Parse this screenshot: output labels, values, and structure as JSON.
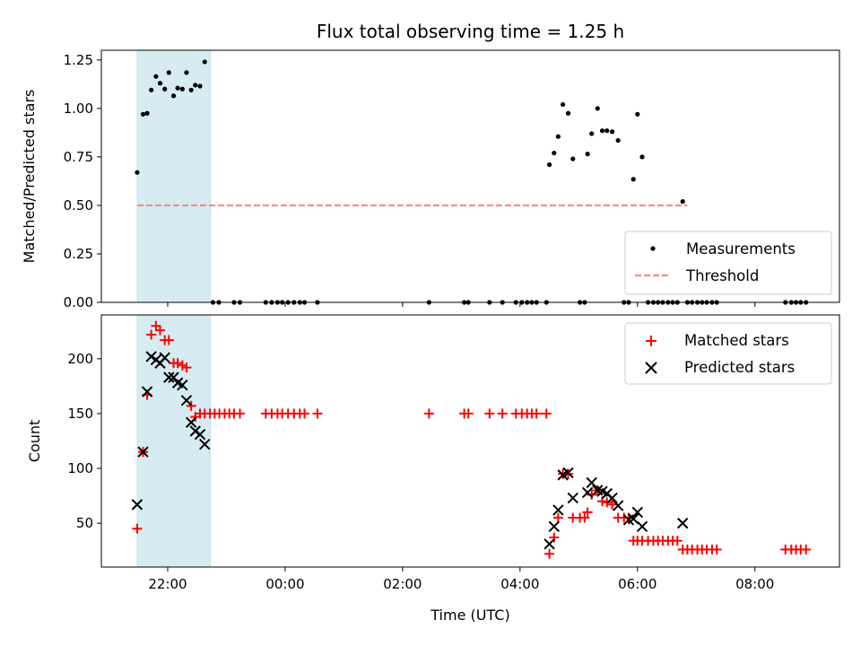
{
  "chart_data": [
    {
      "type": "scatter",
      "title": "Flux total observing time = 1.25 h",
      "ylabel": "Matched/Predicted stars",
      "xlabel": "",
      "ylim": [
        0,
        1.3
      ],
      "yticks": [
        0,
        0.25,
        0.5,
        0.75,
        1.0,
        1.25
      ],
      "ytick_labels": [
        "0.00",
        "0.25",
        "0.50",
        "0.75",
        "1.00",
        "1.25"
      ],
      "xticks_hours": [
        22,
        24,
        26,
        28,
        30,
        32
      ],
      "xtick_labels_shown": false,
      "legend_placement": "lower right",
      "legend": [
        "Measurements",
        "Threshold"
      ],
      "highlight_span_hours": [
        21.48,
        22.73
      ],
      "highlight_color": "#add8e6",
      "threshold": {
        "name": "Threshold",
        "value": 0.5,
        "x_range_hours": [
          21.48,
          30.85
        ],
        "color": "#ff8080"
      },
      "series": [
        {
          "name": "Measurements",
          "color": "#000000",
          "points": [
            [
              21.48,
              0.67
            ],
            [
              21.58,
              0.97
            ],
            [
              21.65,
              0.975
            ],
            [
              21.72,
              1.095
            ],
            [
              21.8,
              1.165
            ],
            [
              21.87,
              1.13
            ],
            [
              21.95,
              1.1
            ],
            [
              22.02,
              1.185
            ],
            [
              22.1,
              1.065
            ],
            [
              22.17,
              1.105
            ],
            [
              22.25,
              1.1
            ],
            [
              22.32,
              1.185
            ],
            [
              22.4,
              1.095
            ],
            [
              22.47,
              1.12
            ],
            [
              22.55,
              1.115
            ],
            [
              22.63,
              1.24
            ],
            [
              22.77,
              0
            ],
            [
              22.87,
              0
            ],
            [
              23.13,
              0
            ],
            [
              23.23,
              0
            ],
            [
              23.67,
              0
            ],
            [
              23.77,
              0
            ],
            [
              23.87,
              0
            ],
            [
              23.95,
              0
            ],
            [
              24.05,
              0
            ],
            [
              24.15,
              0
            ],
            [
              24.25,
              0
            ],
            [
              24.33,
              0
            ],
            [
              24.55,
              0
            ],
            [
              26.45,
              0
            ],
            [
              27.05,
              0
            ],
            [
              27.12,
              0
            ],
            [
              27.48,
              0
            ],
            [
              27.7,
              0
            ],
            [
              27.93,
              0
            ],
            [
              28.03,
              0
            ],
            [
              28.12,
              0
            ],
            [
              28.2,
              0
            ],
            [
              28.28,
              0
            ],
            [
              28.45,
              0
            ],
            [
              28.5,
              0.71
            ],
            [
              28.58,
              0.77
            ],
            [
              28.65,
              0.855
            ],
            [
              28.73,
              1.02
            ],
            [
              28.82,
              0.975
            ],
            [
              28.9,
              0.74
            ],
            [
              29.02,
              0
            ],
            [
              29.1,
              0
            ],
            [
              29.15,
              0.765
            ],
            [
              29.22,
              0.87
            ],
            [
              29.32,
              1.0
            ],
            [
              29.4,
              0.885
            ],
            [
              29.48,
              0.885
            ],
            [
              29.57,
              0.88
            ],
            [
              29.67,
              0.835
            ],
            [
              29.77,
              0
            ],
            [
              29.85,
              0
            ],
            [
              29.93,
              0.635
            ],
            [
              30.0,
              0.97
            ],
            [
              30.08,
              0.75
            ],
            [
              30.18,
              0
            ],
            [
              30.27,
              0
            ],
            [
              30.35,
              0
            ],
            [
              30.43,
              0
            ],
            [
              30.52,
              0
            ],
            [
              30.6,
              0
            ],
            [
              30.68,
              0
            ],
            [
              30.77,
              0.52
            ],
            [
              30.85,
              0
            ],
            [
              30.93,
              0
            ],
            [
              31.02,
              0
            ],
            [
              31.1,
              0
            ],
            [
              31.18,
              0
            ],
            [
              31.27,
              0
            ],
            [
              31.35,
              0
            ],
            [
              32.52,
              0
            ],
            [
              32.62,
              0
            ],
            [
              32.7,
              0
            ],
            [
              32.78,
              0
            ],
            [
              32.87,
              0
            ]
          ]
        }
      ]
    },
    {
      "type": "scatter",
      "title": "",
      "ylabel": "Count",
      "xlabel": "Time (UTC)",
      "ylim": [
        10,
        240
      ],
      "yticks": [
        50,
        100,
        150,
        200
      ],
      "ytick_labels": [
        "50",
        "100",
        "150",
        "200"
      ],
      "xticks_hours": [
        22,
        24,
        26,
        28,
        30,
        32
      ],
      "xtick_labels": [
        "22:00",
        "00:00",
        "02:00",
        "04:00",
        "06:00",
        "08:00"
      ],
      "legend_placement": "upper right",
      "legend": [
        "Matched stars",
        "Predicted stars"
      ],
      "highlight_span_hours": [
        21.48,
        22.73
      ],
      "highlight_color": "#add8e6",
      "series": [
        {
          "name": "Matched stars",
          "marker": "plus",
          "color": "#ff0000",
          "points": [
            [
              21.48,
              45
            ],
            [
              21.58,
              115
            ],
            [
              21.65,
              167
            ],
            [
              21.72,
              222
            ],
            [
              21.8,
              230
            ],
            [
              21.87,
              226
            ],
            [
              21.95,
              217
            ],
            [
              22.02,
              217
            ],
            [
              22.1,
              196
            ],
            [
              22.17,
              196
            ],
            [
              22.25,
              194
            ],
            [
              22.32,
              192
            ],
            [
              22.4,
              157
            ],
            [
              22.47,
              147
            ],
            [
              22.55,
              150
            ],
            [
              22.63,
              150
            ],
            [
              22.72,
              150
            ],
            [
              22.8,
              150
            ],
            [
              22.88,
              150
            ],
            [
              22.97,
              150
            ],
            [
              23.05,
              150
            ],
            [
              23.13,
              150
            ],
            [
              23.23,
              150
            ],
            [
              23.67,
              150
            ],
            [
              23.77,
              150
            ],
            [
              23.87,
              150
            ],
            [
              23.95,
              150
            ],
            [
              24.05,
              150
            ],
            [
              24.15,
              150
            ],
            [
              24.25,
              150
            ],
            [
              24.33,
              150
            ],
            [
              24.55,
              150
            ],
            [
              26.45,
              150
            ],
            [
              27.05,
              150
            ],
            [
              27.12,
              150
            ],
            [
              27.48,
              150
            ],
            [
              27.7,
              150
            ],
            [
              27.93,
              150
            ],
            [
              28.03,
              150
            ],
            [
              28.12,
              150
            ],
            [
              28.2,
              150
            ],
            [
              28.28,
              150
            ],
            [
              28.45,
              150
            ],
            [
              28.5,
              22
            ],
            [
              28.58,
              37
            ],
            [
              28.65,
              55
            ],
            [
              28.73,
              95
            ],
            [
              28.82,
              95
            ],
            [
              28.9,
              55
            ],
            [
              29.02,
              55
            ],
            [
              29.1,
              55
            ],
            [
              29.15,
              60
            ],
            [
              29.22,
              76
            ],
            [
              29.32,
              80
            ],
            [
              29.4,
              70
            ],
            [
              29.48,
              69
            ],
            [
              29.57,
              67
            ],
            [
              29.67,
              55
            ],
            [
              29.77,
              55
            ],
            [
              29.85,
              55
            ],
            [
              29.93,
              34
            ],
            [
              30.0,
              34
            ],
            [
              30.08,
              34
            ],
            [
              30.18,
              34
            ],
            [
              30.27,
              34
            ],
            [
              30.35,
              34
            ],
            [
              30.43,
              34
            ],
            [
              30.52,
              34
            ],
            [
              30.6,
              34
            ],
            [
              30.68,
              34
            ],
            [
              30.77,
              26
            ],
            [
              30.85,
              26
            ],
            [
              30.93,
              26
            ],
            [
              31.02,
              26
            ],
            [
              31.1,
              26
            ],
            [
              31.18,
              26
            ],
            [
              31.27,
              26
            ],
            [
              31.35,
              26
            ],
            [
              32.52,
              26
            ],
            [
              32.62,
              26
            ],
            [
              32.7,
              26
            ],
            [
              32.78,
              26
            ],
            [
              32.87,
              26
            ]
          ]
        },
        {
          "name": "Predicted stars",
          "marker": "x",
          "color": "#000000",
          "points": [
            [
              21.48,
              67
            ],
            [
              21.58,
              115
            ],
            [
              21.65,
              170
            ],
            [
              21.72,
              202
            ],
            [
              21.8,
              199
            ],
            [
              21.87,
              196
            ],
            [
              21.95,
              201
            ],
            [
              22.02,
              183
            ],
            [
              22.1,
              183
            ],
            [
              22.17,
              178
            ],
            [
              22.25,
              176
            ],
            [
              22.32,
              162
            ],
            [
              22.4,
              142
            ],
            [
              22.47,
              134
            ],
            [
              22.55,
              131
            ],
            [
              22.63,
              122
            ],
            [
              28.5,
              31
            ],
            [
              28.58,
              47
            ],
            [
              28.65,
              62
            ],
            [
              28.73,
              94
            ],
            [
              28.82,
              96
            ],
            [
              28.9,
              73
            ],
            [
              29.15,
              78
            ],
            [
              29.22,
              87
            ],
            [
              29.32,
              80
            ],
            [
              29.4,
              79
            ],
            [
              29.48,
              77
            ],
            [
              29.57,
              73
            ],
            [
              29.67,
              66
            ],
            [
              29.85,
              53
            ],
            [
              29.93,
              54
            ],
            [
              30.0,
              60
            ],
            [
              30.08,
              47
            ],
            [
              30.77,
              50
            ]
          ]
        }
      ]
    }
  ]
}
